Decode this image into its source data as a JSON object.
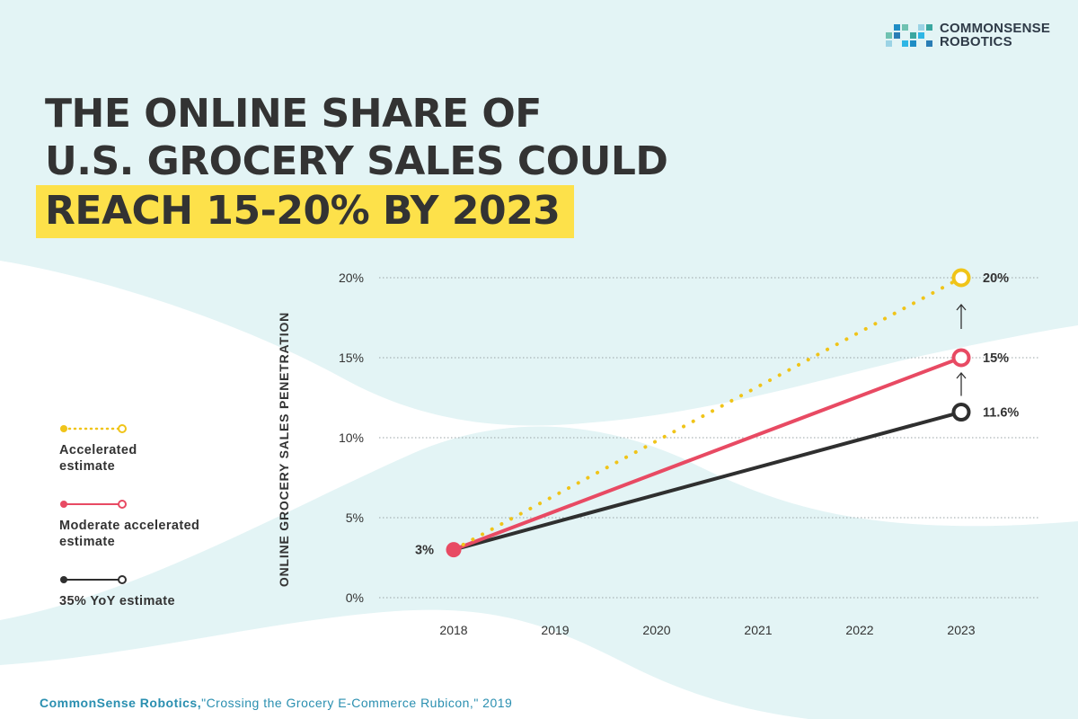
{
  "brand": {
    "logo_line1": "COMMONSENSE",
    "logo_line2": "ROBOTICS",
    "logo_colors": [
      "#2eb6e5",
      "#1f8dc5",
      "#6fc2b1",
      "#2a7db5",
      "#9bd3e5",
      "#3aa7a0"
    ]
  },
  "title": {
    "line1": "THE ONLINE SHARE OF",
    "line2": "U.S. GROCERY SALES COULD",
    "line3_highlighted": "REACH 15-20% BY 2023"
  },
  "legend": {
    "items": [
      {
        "label_line1": "Accelerated",
        "label_line2": "estimate",
        "color": "#f0c419",
        "style": "dotted"
      },
      {
        "label_line1": "Moderate accelerated",
        "label_line2": "estimate",
        "color": "#e84a63",
        "style": "solid"
      },
      {
        "label_line1": "35% YoY estimate",
        "label_line2": "",
        "color": "#2f2f2f",
        "style": "solid"
      }
    ]
  },
  "chart_data": {
    "type": "line",
    "title": "",
    "xlabel": "",
    "ylabel": "ONLINE GROCERY SALES PENETRATION",
    "categories": [
      "2018",
      "2019",
      "2020",
      "2021",
      "2022",
      "2023"
    ],
    "yticks": [
      "0%",
      "5%",
      "10%",
      "15%",
      "20%"
    ],
    "ylim": [
      0,
      20
    ],
    "grid": true,
    "series": [
      {
        "name": "Accelerated estimate",
        "color": "#f0c419",
        "style": "dotted",
        "points": [
          [
            2018,
            3
          ],
          [
            2023,
            20
          ]
        ],
        "end_label": "20%"
      },
      {
        "name": "Moderate accelerated estimate",
        "color": "#e84a63",
        "style": "solid",
        "points": [
          [
            2018,
            3
          ],
          [
            2023,
            15
          ]
        ],
        "end_label": "15%"
      },
      {
        "name": "35% YoY estimate",
        "color": "#2f2f2f",
        "style": "solid",
        "points": [
          [
            2018,
            3
          ],
          [
            2023,
            11.6
          ]
        ],
        "end_label": "11.6%"
      }
    ],
    "start_label": "3%"
  },
  "source": {
    "author": "CommonSense Robotics,",
    "rest": "\"Crossing the Grocery E-Commerce Rubicon,\" 2019"
  }
}
